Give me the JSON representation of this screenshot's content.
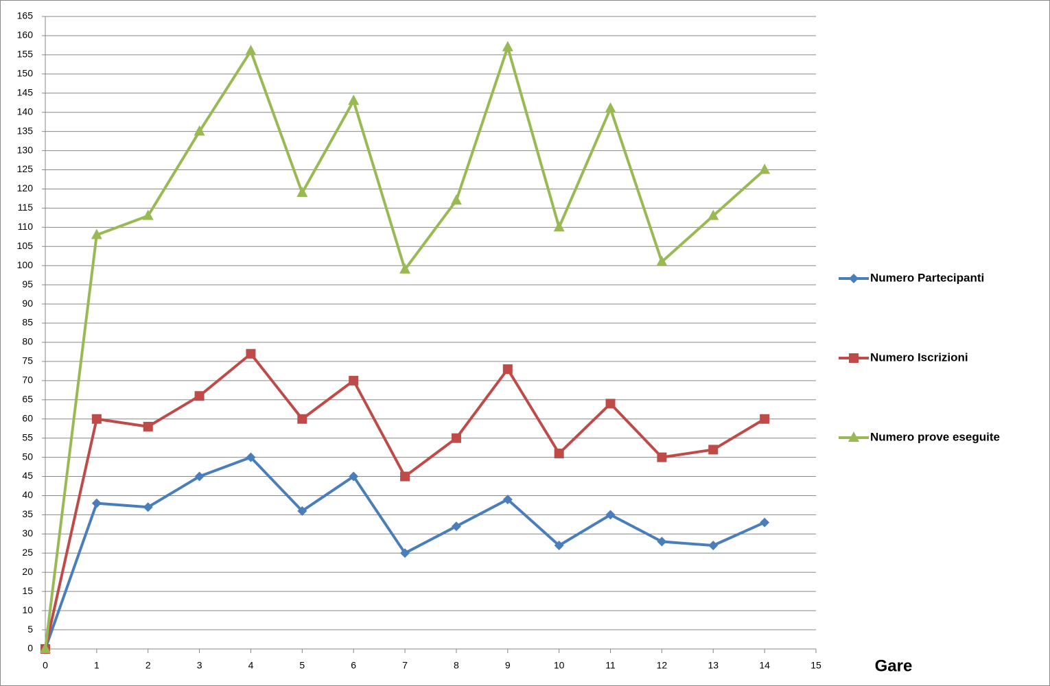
{
  "chart_data": {
    "type": "line",
    "x_label": "Gare",
    "x": [
      0,
      1,
      2,
      3,
      4,
      5,
      6,
      7,
      8,
      9,
      10,
      11,
      12,
      13,
      14
    ],
    "series": [
      {
        "name": "Numero Partecipanti",
        "color": "#4a7ebb",
        "marker": "diamond",
        "values": [
          0,
          38,
          37,
          45,
          50,
          36,
          45,
          25,
          32,
          39,
          27,
          35,
          28,
          27,
          33
        ]
      },
      {
        "name": "Numero Iscrizioni",
        "color": "#be4b48",
        "marker": "square",
        "values": [
          0,
          60,
          58,
          66,
          77,
          60,
          70,
          45,
          55,
          73,
          51,
          64,
          50,
          52,
          60
        ]
      },
      {
        "name": "Numero prove eseguite",
        "color": "#98b954",
        "marker": "triangle",
        "values": [
          0,
          108,
          113,
          135,
          156,
          119,
          143,
          99,
          117,
          157,
          110,
          141,
          101,
          113,
          125
        ]
      }
    ],
    "xlim": [
      0,
      15
    ],
    "xticks": [
      0,
      1,
      2,
      3,
      4,
      5,
      6,
      7,
      8,
      9,
      10,
      11,
      12,
      13,
      14,
      15
    ],
    "ylim": [
      0,
      165
    ],
    "yticks": [
      0,
      5,
      10,
      15,
      20,
      25,
      30,
      35,
      40,
      45,
      50,
      55,
      60,
      65,
      70,
      75,
      80,
      85,
      90,
      95,
      100,
      105,
      110,
      115,
      120,
      125,
      130,
      135,
      140,
      145,
      150,
      155,
      160,
      165
    ],
    "grid": true,
    "legend": "right"
  }
}
